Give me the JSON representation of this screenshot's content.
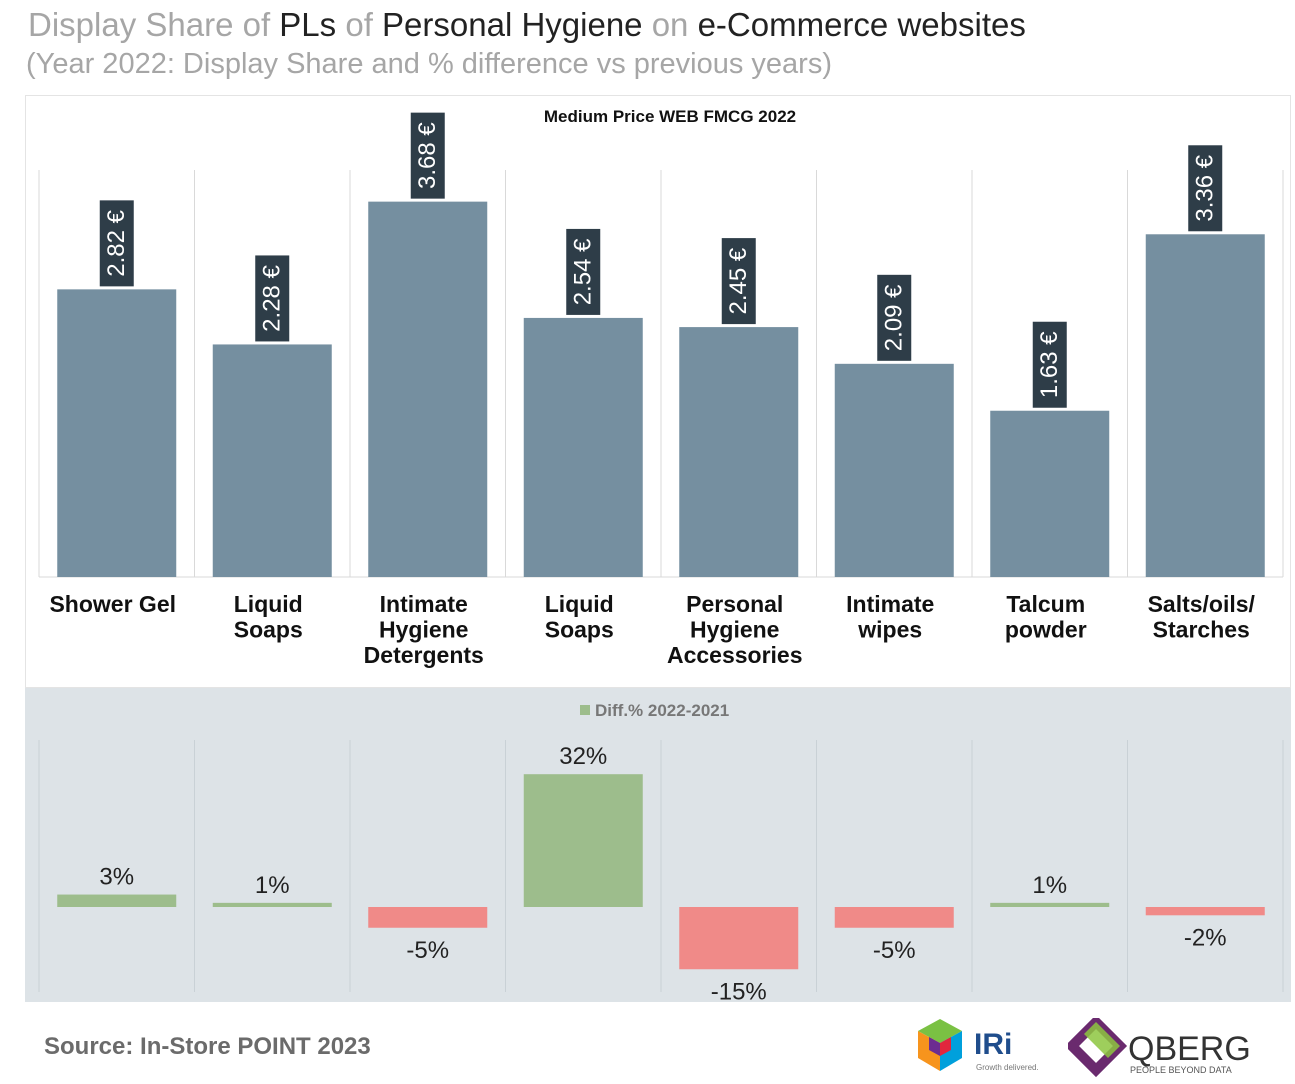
{
  "header": {
    "title_parts": {
      "p1": "Display Share of ",
      "p2": "PLs",
      "p3": " of ",
      "p4": "Personal Hygiene",
      "p5": " on ",
      "p6": "e-Commerce websites"
    },
    "subtitle": "(Year 2022: Display Share and % difference vs previous years)"
  },
  "colors": {
    "bar": "#758fa0",
    "price_label_bg": "#2e3d48",
    "positive": "#9dbd8c",
    "negative": "#f08a88",
    "grid": "#d9d9d9"
  },
  "chart_data": [
    {
      "type": "bar",
      "title": "Medium Price WEB FMCG 2022",
      "categories": [
        [
          "Shower Gel"
        ],
        [
          "Liquid",
          "Soaps"
        ],
        [
          "Intimate",
          "Hygiene",
          "Detergents"
        ],
        [
          "Liquid",
          "Soaps"
        ],
        [
          "Personal",
          "Hygiene",
          "Accessories"
        ],
        [
          "Intimate",
          "wipes"
        ],
        [
          "Talcum",
          "powder"
        ],
        [
          "Salts/oils/",
          "Starches"
        ]
      ],
      "values": [
        2.82,
        2.28,
        3.68,
        2.54,
        2.45,
        2.09,
        1.63,
        3.36
      ],
      "data_labels": [
        "2.82 €",
        "2.28 €",
        "3.68 €",
        "2.54 €",
        "2.45 €",
        "2.09 €",
        "1.63 €",
        "3.36 €"
      ],
      "unit": "€",
      "ylim": [
        0,
        4
      ]
    },
    {
      "type": "bar",
      "legend": "Diff.% 2022-2021",
      "legend_position": "top-center",
      "values": [
        3,
        1,
        -5,
        32,
        -15,
        -5,
        1,
        -2
      ],
      "data_labels": [
        "3%",
        "1%",
        "-5%",
        "32%",
        "-15%",
        "-5%",
        "1%",
        "-2%"
      ],
      "unit": "%",
      "ylim": [
        -20,
        35
      ]
    }
  ],
  "footer": {
    "source": "Source: In-Store POINT 2023",
    "logos": [
      {
        "text": "IRi",
        "tagline": "Growth delivered."
      },
      {
        "text": "QBERG",
        "tagline": "PEOPLE BEYOND DATA"
      }
    ]
  }
}
